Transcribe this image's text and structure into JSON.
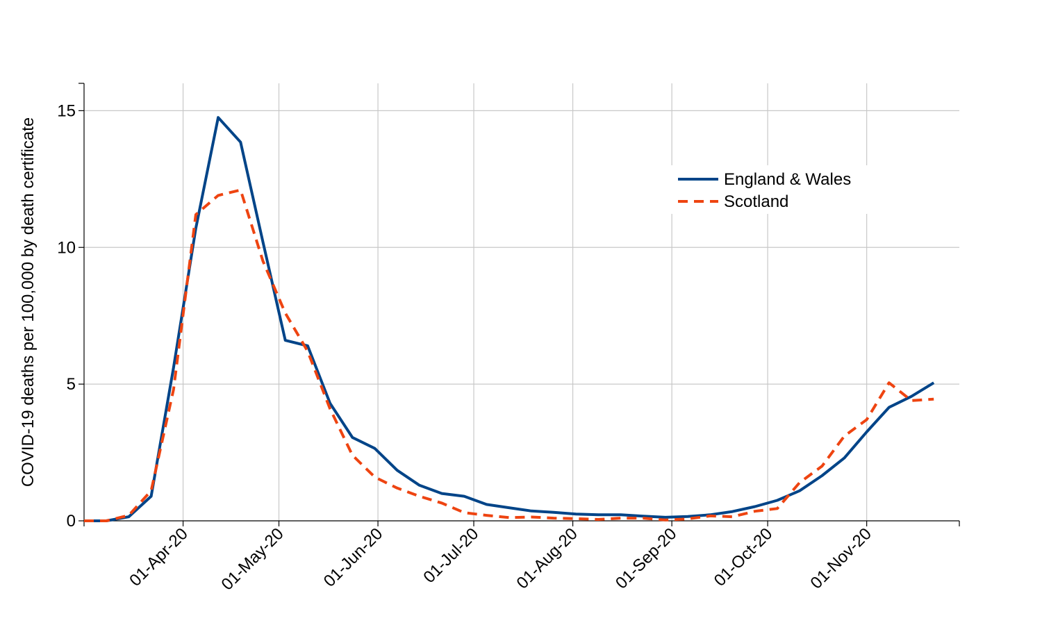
{
  "chart_data": {
    "type": "line",
    "ylabel": "COVID-19 deaths per 100,000 by death certificate",
    "xlabel": "",
    "ylim": [
      0,
      16
    ],
    "yticks": [
      0,
      5,
      10,
      15
    ],
    "xlim": [
      "2020-03-01",
      "2020-11-30"
    ],
    "xticks": [
      {
        "date": "2020-04-01",
        "label": "01-Apr-20"
      },
      {
        "date": "2020-05-01",
        "label": "01-May-20"
      },
      {
        "date": "2020-06-01",
        "label": "01-Jun-20"
      },
      {
        "date": "2020-07-01",
        "label": "01-Jul-20"
      },
      {
        "date": "2020-08-01",
        "label": "01-Aug-20"
      },
      {
        "date": "2020-09-01",
        "label": "01-Sep-20"
      },
      {
        "date": "2020-10-01",
        "label": "01-Oct-20"
      },
      {
        "date": "2020-11-01",
        "label": "01-Nov-20"
      }
    ],
    "grid": true,
    "legend_position": "top-right",
    "series": [
      {
        "name": "England & Wales",
        "color": "#004488",
        "style": "solid",
        "points": [
          [
            "2020-03-01",
            0
          ],
          [
            "2020-03-08",
            0
          ],
          [
            "2020-03-15",
            0.15
          ],
          [
            "2020-03-22",
            0.9
          ],
          [
            "2020-03-29",
            5.6
          ],
          [
            "2020-04-05",
            10.7
          ],
          [
            "2020-04-12",
            14.75
          ],
          [
            "2020-04-19",
            13.85
          ],
          [
            "2020-04-26",
            10.2
          ],
          [
            "2020-05-03",
            6.6
          ],
          [
            "2020-05-10",
            6.4
          ],
          [
            "2020-05-17",
            4.3
          ],
          [
            "2020-05-24",
            3.05
          ],
          [
            "2020-05-31",
            2.65
          ],
          [
            "2020-06-07",
            1.85
          ],
          [
            "2020-06-14",
            1.3
          ],
          [
            "2020-06-21",
            1.0
          ],
          [
            "2020-06-28",
            0.9
          ],
          [
            "2020-07-05",
            0.6
          ],
          [
            "2020-07-12",
            0.48
          ],
          [
            "2020-07-19",
            0.36
          ],
          [
            "2020-07-26",
            0.31
          ],
          [
            "2020-08-02",
            0.25
          ],
          [
            "2020-08-09",
            0.22
          ],
          [
            "2020-08-16",
            0.22
          ],
          [
            "2020-08-23",
            0.17
          ],
          [
            "2020-08-30",
            0.13
          ],
          [
            "2020-09-06",
            0.16
          ],
          [
            "2020-09-13",
            0.22
          ],
          [
            "2020-09-20",
            0.34
          ],
          [
            "2020-09-27",
            0.52
          ],
          [
            "2020-10-04",
            0.75
          ],
          [
            "2020-10-11",
            1.1
          ],
          [
            "2020-10-18",
            1.65
          ],
          [
            "2020-10-25",
            2.3
          ],
          [
            "2020-11-01",
            3.25
          ],
          [
            "2020-11-08",
            4.15
          ],
          [
            "2020-11-15",
            4.55
          ],
          [
            "2020-11-22",
            5.05
          ]
        ]
      },
      {
        "name": "Scotland",
        "color": "#EE4411",
        "style": "dashed",
        "points": [
          [
            "2020-03-01",
            0
          ],
          [
            "2020-03-08",
            0
          ],
          [
            "2020-03-15",
            0.2
          ],
          [
            "2020-03-22",
            1.1
          ],
          [
            "2020-03-29",
            4.8
          ],
          [
            "2020-04-05",
            11.2
          ],
          [
            "2020-04-12",
            11.9
          ],
          [
            "2020-04-19",
            12.1
          ],
          [
            "2020-04-26",
            9.5
          ],
          [
            "2020-05-03",
            7.6
          ],
          [
            "2020-05-10",
            6.2
          ],
          [
            "2020-05-17",
            4.1
          ],
          [
            "2020-05-24",
            2.4
          ],
          [
            "2020-05-31",
            1.6
          ],
          [
            "2020-06-07",
            1.2
          ],
          [
            "2020-06-14",
            0.9
          ],
          [
            "2020-06-21",
            0.65
          ],
          [
            "2020-06-28",
            0.3
          ],
          [
            "2020-07-05",
            0.2
          ],
          [
            "2020-07-12",
            0.12
          ],
          [
            "2020-07-19",
            0.14
          ],
          [
            "2020-07-26",
            0.1
          ],
          [
            "2020-08-02",
            0.08
          ],
          [
            "2020-08-09",
            0.05
          ],
          [
            "2020-08-16",
            0.1
          ],
          [
            "2020-08-23",
            0.1
          ],
          [
            "2020-08-30",
            0.03
          ],
          [
            "2020-09-06",
            0.07
          ],
          [
            "2020-09-13",
            0.18
          ],
          [
            "2020-09-20",
            0.15
          ],
          [
            "2020-09-27",
            0.35
          ],
          [
            "2020-10-04",
            0.45
          ],
          [
            "2020-10-11",
            1.4
          ],
          [
            "2020-10-18",
            2.0
          ],
          [
            "2020-10-25",
            3.1
          ],
          [
            "2020-11-01",
            3.7
          ],
          [
            "2020-11-08",
            5.05
          ],
          [
            "2020-11-15",
            4.4
          ],
          [
            "2020-11-22",
            4.45
          ]
        ]
      }
    ]
  }
}
